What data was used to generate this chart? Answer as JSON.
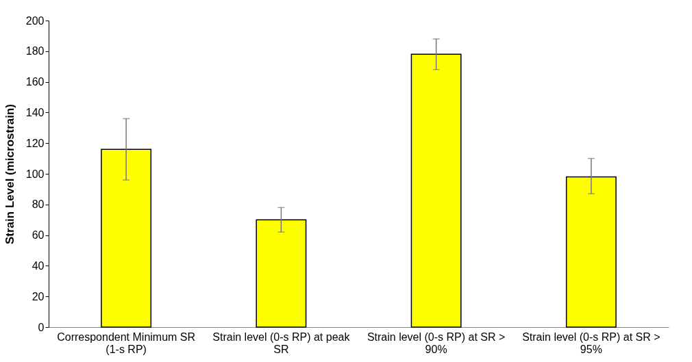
{
  "chart_data": {
    "type": "bar",
    "ylabel": "Strain Level (microstrain)",
    "categories": [
      "Correspondent Minimum SR (1-s RP)",
      "Strain level (0-s RP) at peak SR",
      "Strain level (0-s RP) at SR > 90%",
      "Strain level (0-s RP) at SR > 95%"
    ],
    "values": [
      116,
      70,
      178,
      98
    ],
    "color": "#ffff00",
    "errors": [
      [
        96,
        136
      ],
      [
        62,
        78
      ],
      [
        168,
        188
      ],
      [
        87,
        110
      ]
    ],
    "ylim": [
      0,
      200
    ],
    "yticks": [
      0,
      20,
      40,
      60,
      80,
      100,
      120,
      140,
      160,
      180,
      200
    ],
    "grid": false
  }
}
